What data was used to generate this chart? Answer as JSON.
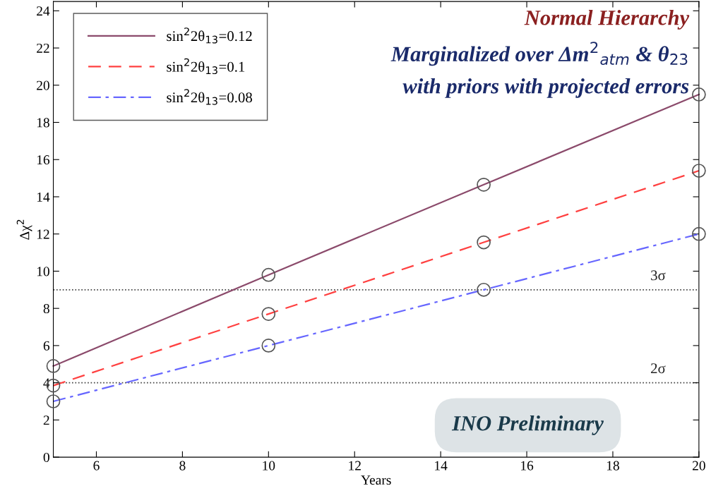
{
  "chart_data": {
    "type": "line",
    "xlabel": "Years",
    "ylabel": "Δχ$^{2}$",
    "x": [
      5,
      10,
      15,
      20
    ],
    "series": [
      {
        "name": "sin$^{2}$2θ$_{13}$=0.12",
        "color": "#8b4a6b",
        "values": [
          4.9,
          9.8,
          14.65,
          19.5
        ],
        "line_style": "solid"
      },
      {
        "name": "sin$^{2}$2θ$_{13}$=0.1",
        "color": "#ff4040",
        "values": [
          3.85,
          7.7,
          11.55,
          15.4
        ],
        "line_style": "dashed"
      },
      {
        "name": "sin$^{2}$2θ$_{13}$=0.08",
        "color": "#6666ff",
        "values": [
          3.0,
          6.0,
          9.0,
          12.0
        ],
        "line_style": "dashdot"
      }
    ],
    "marker": "circle",
    "xlim": [
      5,
      20
    ],
    "xticks": [
      6,
      8,
      10,
      12,
      14,
      16,
      18,
      20
    ],
    "ylim": [
      0,
      24.5
    ],
    "yticks": [
      0,
      2,
      4,
      6,
      8,
      10,
      12,
      14,
      16,
      18,
      20,
      22,
      24
    ],
    "ref_lines": [
      {
        "axis": "y",
        "value": 9,
        "label": "3σ",
        "line_style": "dotted",
        "color": "#444444"
      },
      {
        "axis": "y",
        "value": 4,
        "label": "2σ",
        "line_style": "dotted",
        "color": "#444444"
      }
    ],
    "annotations": [
      "Normal Hierarchy",
      "Marginalized over Δm$^{2}$$_{atm}$ & θ$_{23}$",
      "with priors with projected errors",
      "INO Preliminary"
    ],
    "legend": "top left",
    "grid": false
  }
}
